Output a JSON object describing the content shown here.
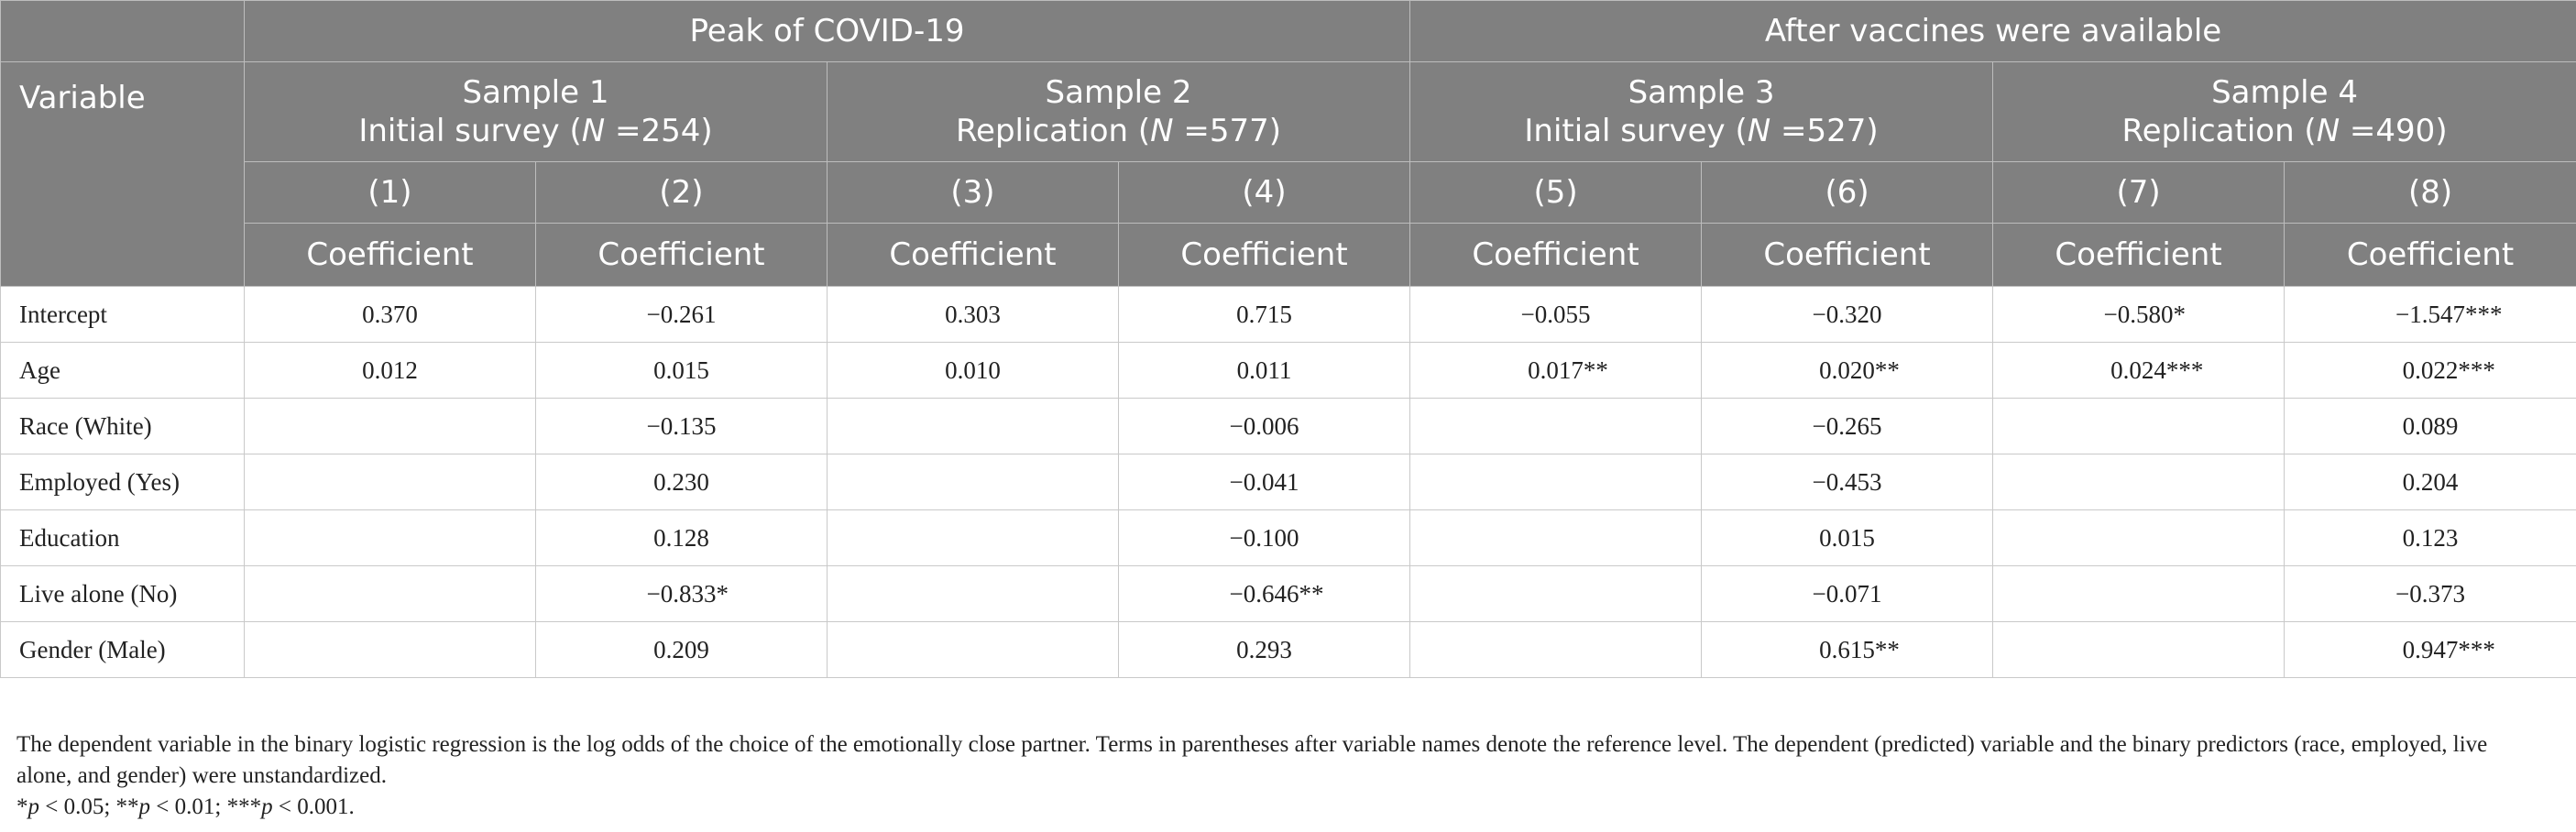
{
  "table": {
    "variable_header": "Variable",
    "periods": [
      "Peak of COVID-19",
      "After vaccines were available"
    ],
    "samples": [
      {
        "title": "Sample 1",
        "desc_prefix": "Initial survey (",
        "n_symbol": "N",
        "n_text": " =254)"
      },
      {
        "title": "Sample 2",
        "desc_prefix": "Replication (",
        "n_symbol": "N",
        "n_text": " =577)"
      },
      {
        "title": "Sample 3",
        "desc_prefix": "Initial survey (",
        "n_symbol": "N",
        "n_text": " =527)"
      },
      {
        "title": "Sample 4",
        "desc_prefix": "Replication (",
        "n_symbol": "N",
        "n_text": " =490)"
      }
    ],
    "column_numbers": [
      "(1)",
      "(2)",
      "(3)",
      "(4)",
      "(5)",
      "(6)",
      "(7)",
      "(8)"
    ],
    "coef_label": "Coefficient",
    "rows": [
      {
        "label": "Intercept",
        "cells": [
          {
            "v": "0.370",
            "s": ""
          },
          {
            "v": "−0.261",
            "s": ""
          },
          {
            "v": "0.303",
            "s": ""
          },
          {
            "v": "0.715",
            "s": ""
          },
          {
            "v": "−0.055",
            "s": ""
          },
          {
            "v": "−0.320",
            "s": ""
          },
          {
            "v": "−0.580",
            "s": "*"
          },
          {
            "v": "−1.547",
            "s": "***"
          }
        ]
      },
      {
        "label": "Age",
        "cells": [
          {
            "v": "0.012",
            "s": ""
          },
          {
            "v": "0.015",
            "s": ""
          },
          {
            "v": "0.010",
            "s": ""
          },
          {
            "v": "0.011",
            "s": ""
          },
          {
            "v": "0.017",
            "s": "**"
          },
          {
            "v": "0.020",
            "s": "**"
          },
          {
            "v": "0.024",
            "s": "***"
          },
          {
            "v": "0.022",
            "s": "***"
          }
        ]
      },
      {
        "label": "Race (White)",
        "cells": [
          {
            "v": "",
            "s": ""
          },
          {
            "v": "−0.135",
            "s": ""
          },
          {
            "v": "",
            "s": ""
          },
          {
            "v": "−0.006",
            "s": ""
          },
          {
            "v": "",
            "s": ""
          },
          {
            "v": "−0.265",
            "s": ""
          },
          {
            "v": "",
            "s": ""
          },
          {
            "v": "0.089",
            "s": ""
          }
        ]
      },
      {
        "label": "Employed (Yes)",
        "cells": [
          {
            "v": "",
            "s": ""
          },
          {
            "v": "0.230",
            "s": ""
          },
          {
            "v": "",
            "s": ""
          },
          {
            "v": "−0.041",
            "s": ""
          },
          {
            "v": "",
            "s": ""
          },
          {
            "v": "−0.453",
            "s": ""
          },
          {
            "v": "",
            "s": ""
          },
          {
            "v": "0.204",
            "s": ""
          }
        ]
      },
      {
        "label": "Education",
        "cells": [
          {
            "v": "",
            "s": ""
          },
          {
            "v": "0.128",
            "s": ""
          },
          {
            "v": "",
            "s": ""
          },
          {
            "v": "−0.100",
            "s": ""
          },
          {
            "v": "",
            "s": ""
          },
          {
            "v": "0.015",
            "s": ""
          },
          {
            "v": "",
            "s": ""
          },
          {
            "v": "0.123",
            "s": ""
          }
        ]
      },
      {
        "label": "Live alone (No)",
        "cells": [
          {
            "v": "",
            "s": ""
          },
          {
            "v": "−0.833",
            "s": "*"
          },
          {
            "v": "",
            "s": ""
          },
          {
            "v": "−0.646",
            "s": "**"
          },
          {
            "v": "",
            "s": ""
          },
          {
            "v": "−0.071",
            "s": ""
          },
          {
            "v": "",
            "s": ""
          },
          {
            "v": "−0.373",
            "s": ""
          }
        ]
      },
      {
        "label": "Gender (Male)",
        "cells": [
          {
            "v": "",
            "s": ""
          },
          {
            "v": "0.209",
            "s": ""
          },
          {
            "v": "",
            "s": ""
          },
          {
            "v": "0.293",
            "s": ""
          },
          {
            "v": "",
            "s": ""
          },
          {
            "v": "0.615",
            "s": "**"
          },
          {
            "v": "",
            "s": ""
          },
          {
            "v": "0.947",
            "s": "***"
          }
        ]
      }
    ]
  },
  "notes": {
    "line1": "The dependent variable in the binary logistic regression is the log odds of the choice of the emotionally close partner. Terms in parentheses after variable names denote the reference level. The dependent (predicted) variable and the binary predictors (race, employed, live alone, and gender) were unstandardized.",
    "sig": [
      {
        "stars": "*",
        "p": "p",
        "rest": " < 0.05; "
      },
      {
        "stars": "**",
        "p": "p",
        "rest": " < 0.01; "
      },
      {
        "stars": "***",
        "p": "p",
        "rest": " < 0.001."
      }
    ]
  }
}
